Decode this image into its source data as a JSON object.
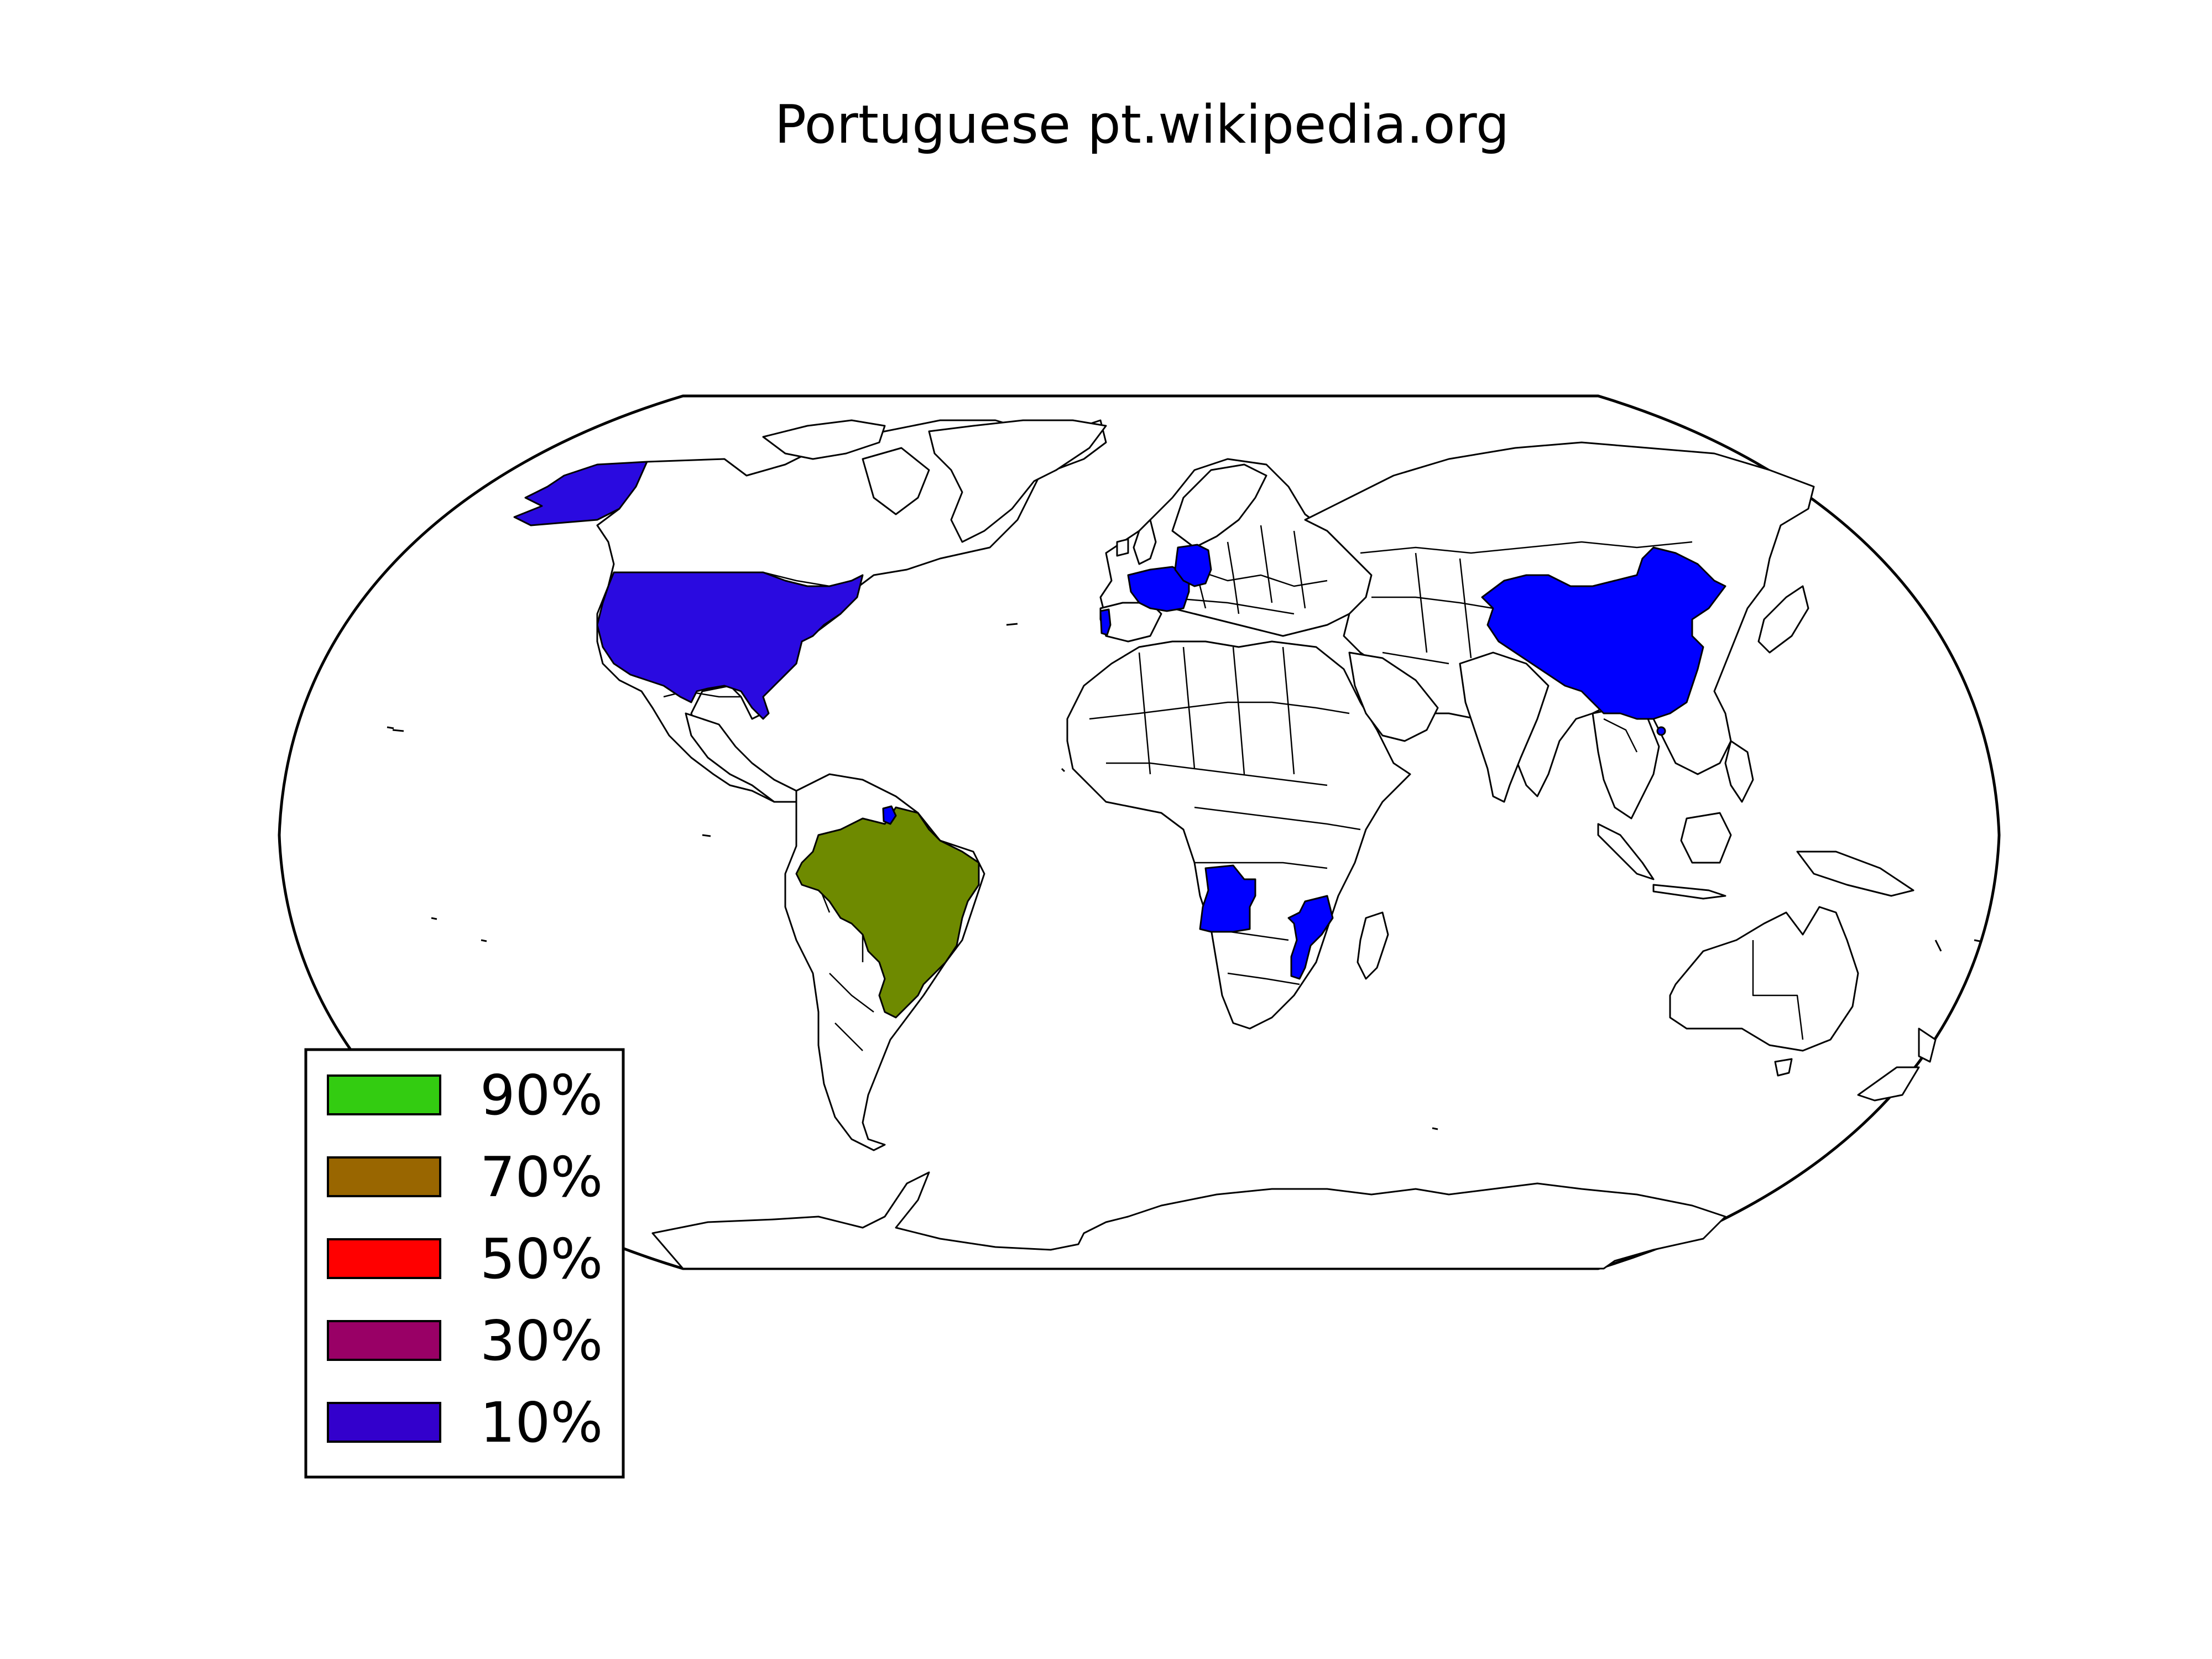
{
  "title": "Portuguese pt.wikipedia.org",
  "legend": {
    "items": [
      {
        "label": "90%",
        "color": "#33cc11"
      },
      {
        "label": "70%",
        "color": "#996600"
      },
      {
        "label": "50%",
        "color": "#ff0000"
      },
      {
        "label": "30%",
        "color": "#990066"
      },
      {
        "label": "10%",
        "color": "#3300cc"
      }
    ]
  },
  "highlighted_countries": {
    "brazil": {
      "color": "#6e8a00"
    },
    "united_states": {
      "color": "#2a0ae0"
    },
    "alaska": {
      "color": "#2a0ae0"
    },
    "portugal": {
      "color": "#0000ff"
    },
    "france": {
      "color": "#0000ff"
    },
    "germany": {
      "color": "#0000ff"
    },
    "angola": {
      "color": "#0000ff"
    },
    "mozambique": {
      "color": "#0000ff"
    },
    "china": {
      "color": "#0000ff"
    },
    "french_guiana": {
      "color": "#0000ff"
    },
    "macau": {
      "color": "#0000ff"
    }
  }
}
